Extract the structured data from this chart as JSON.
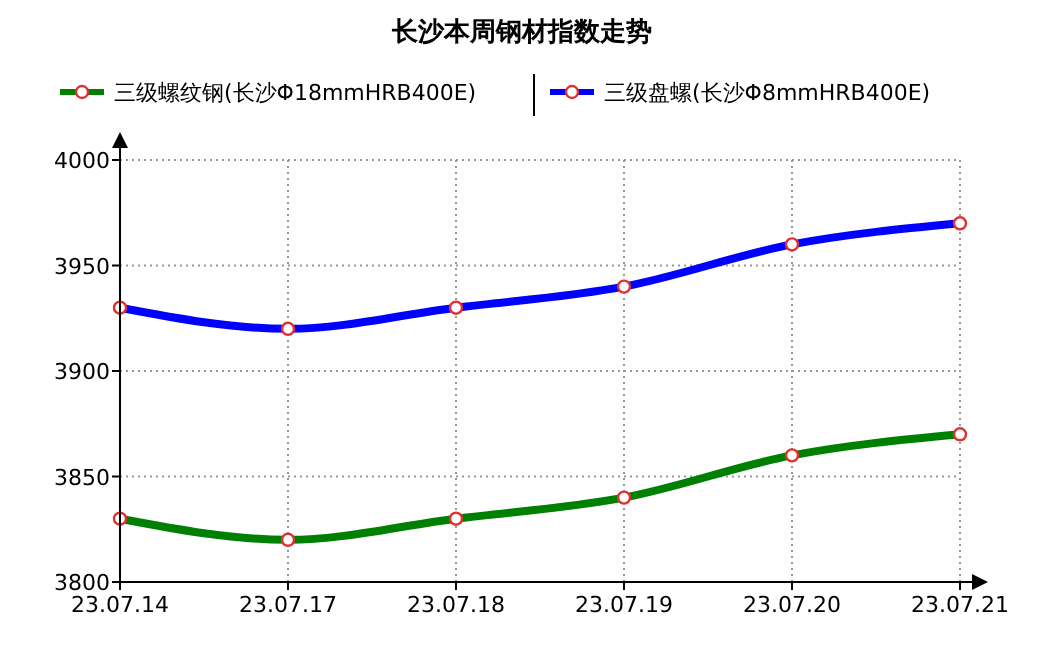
{
  "chart_data": {
    "type": "line",
    "title": "长沙本周钢材指数走势",
    "categories": [
      "23.07.14",
      "23.07.17",
      "23.07.18",
      "23.07.19",
      "23.07.20",
      "23.07.21"
    ],
    "series": [
      {
        "name": "三级螺纹钢(长沙Φ18mmHRB400E)",
        "color": "#008000",
        "values": [
          3830,
          3820,
          3830,
          3840,
          3860,
          3870
        ]
      },
      {
        "name": "三级盘螺(长沙Φ8mmHRB400E)",
        "color": "#0000ff",
        "values": [
          3930,
          3920,
          3930,
          3940,
          3960,
          3970
        ]
      }
    ],
    "ylim": [
      3800,
      4000
    ],
    "yticks": [
      3800,
      3850,
      3900,
      3950,
      4000
    ],
    "grid": true,
    "legend": "top",
    "marker": "circle",
    "line_style": "solid"
  }
}
